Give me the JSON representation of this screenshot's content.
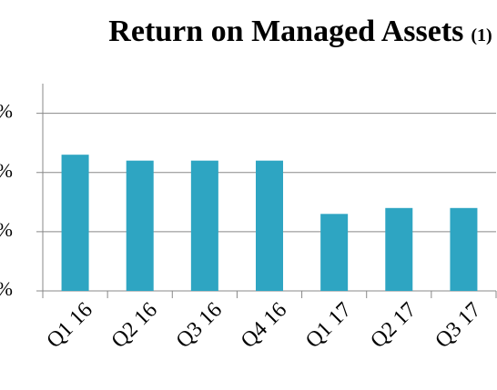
{
  "chart_data": {
    "type": "bar",
    "title": "Return on Managed Assets",
    "title_note": "(1)",
    "categories": [
      "Q1 16",
      "Q2 16",
      "Q3 16",
      "Q4 16",
      "Q1 17",
      "Q2 17",
      "Q3 17"
    ],
    "values": [
      2.3,
      2.2,
      2.2,
      2.2,
      1.3,
      1.4,
      1.4
    ],
    "color": "#2ea5c2",
    "ylim": [
      0,
      3.5
    ],
    "yticks": [
      {
        "value": 0,
        "label": "%"
      },
      {
        "value": 1,
        "label": "%"
      },
      {
        "value": 2,
        "label": "%"
      },
      {
        "value": 3,
        "label": "%"
      }
    ],
    "grid": true
  }
}
